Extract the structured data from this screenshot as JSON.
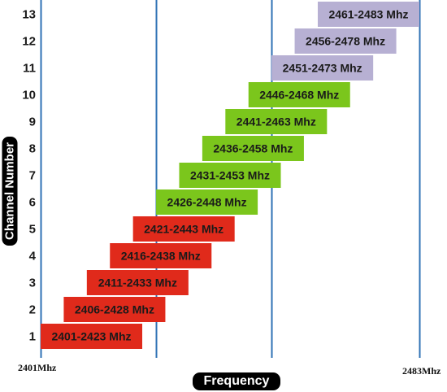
{
  "chart_data": {
    "type": "bar",
    "orientation": "horizontal-range",
    "xlabel": "Frequency",
    "ylabel": "Channel Number",
    "x_axis_edge_labels": {
      "left": "2401Mhz",
      "right": "2483Mhz"
    },
    "vertical_lines": true,
    "colors": {
      "low": "#e02a1b",
      "mid": "#7bc61c",
      "high": "#b7b0d3",
      "line": "#2f72b5"
    },
    "channels": [
      {
        "channel": "1",
        "start": 2401,
        "end": 2423,
        "label": "2401-2423 Mhz",
        "group": "low"
      },
      {
        "channel": "2",
        "start": 2406,
        "end": 2428,
        "label": "2406-2428 Mhz",
        "group": "low"
      },
      {
        "channel": "3",
        "start": 2411,
        "end": 2433,
        "label": "2411-2433 Mhz",
        "group": "low"
      },
      {
        "channel": "4",
        "start": 2416,
        "end": 2438,
        "label": "2416-2438 Mhz",
        "group": "low"
      },
      {
        "channel": "5",
        "start": 2421,
        "end": 2443,
        "label": "2421-2443 Mhz",
        "group": "low"
      },
      {
        "channel": "6",
        "start": 2426,
        "end": 2448,
        "label": "2426-2448 Mhz",
        "group": "mid"
      },
      {
        "channel": "7",
        "start": 2431,
        "end": 2453,
        "label": "2431-2453 Mhz",
        "group": "mid"
      },
      {
        "channel": "8",
        "start": 2436,
        "end": 2458,
        "label": "2436-2458 Mhz",
        "group": "mid"
      },
      {
        "channel": "9",
        "start": 2441,
        "end": 2463,
        "label": "2441-2463 Mhz",
        "group": "mid"
      },
      {
        "channel": "10",
        "start": 2446,
        "end": 2468,
        "label": "2446-2468 Mhz",
        "group": "mid"
      },
      {
        "channel": "11",
        "start": 2451,
        "end": 2473,
        "label": "2451-2473 Mhz",
        "group": "high"
      },
      {
        "channel": "12",
        "start": 2456,
        "end": 2478,
        "label": "2456-2478 Mhz",
        "group": "high"
      },
      {
        "channel": "13",
        "start": 2461,
        "end": 2483,
        "label": "2461-2483 Mhz",
        "group": "high"
      }
    ]
  }
}
